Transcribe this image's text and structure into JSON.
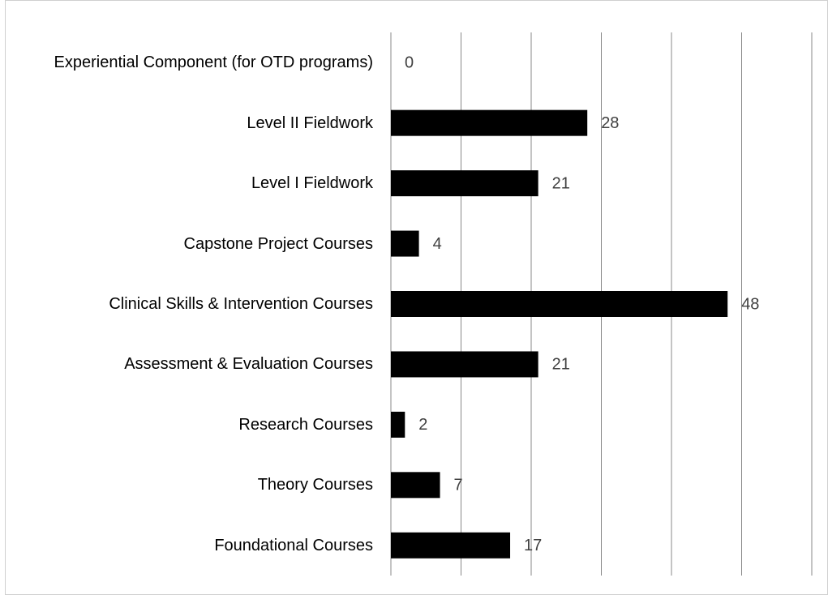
{
  "chart_data": {
    "type": "barh",
    "categories": [
      "Experiential Component (for OTD programs)",
      "Level II Fieldwork",
      "Level I Fieldwork",
      "Capstone Project Courses",
      "Clinical Skills & Intervention Courses",
      "Assessment & Evaluation Courses",
      "Research Courses",
      "Theory Courses",
      "Foundational Courses"
    ],
    "values": [
      0,
      28,
      21,
      4,
      48,
      21,
      2,
      7,
      17
    ],
    "color": "#000000",
    "xlim": [
      0,
      60
    ],
    "xticks": [
      0,
      10,
      20,
      30,
      40,
      50,
      60
    ],
    "grid": true
  }
}
